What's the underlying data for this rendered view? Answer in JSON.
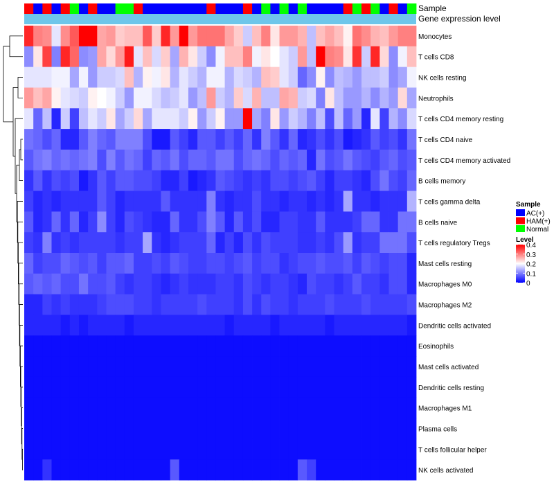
{
  "chart_data": {
    "type": "heatmap",
    "title": "",
    "annotation_labels": [
      "Sample",
      "Gene expression level"
    ],
    "legend": {
      "sample_title": "Sample",
      "sample_entries": [
        {
          "code": "A",
          "label": "AC(+)",
          "color": "#0000ff"
        },
        {
          "code": "H",
          "label": "HAM(+)",
          "color": "#ff0000"
        },
        {
          "code": "N",
          "label": "Normal",
          "color": "#00ff00"
        }
      ],
      "level_title": "Level",
      "level_ticks": [
        "0.4",
        "0.3",
        "0.2",
        "0.1",
        "0"
      ],
      "level_tick_values": [
        0.4,
        0.3,
        0.2,
        0.1,
        0
      ],
      "scale": {
        "min": 0,
        "mid": 0.2,
        "max": 0.4,
        "low_color": "#0000ff",
        "mid_color": "#ffffff",
        "high_color": "#ff0000"
      }
    },
    "gene_expression_bar_color": "#6ec6ea",
    "sample_groups": "HAHAHNAHAANNHAAAAAAAHAAAHANANANAAAAHNHNAHAN",
    "row_labels": [
      "Monocytes",
      "T cells CD8",
      "NK cells resting",
      "Neutrophils",
      "T cells CD4 memory resting",
      "T cells CD4 naive",
      "T cells CD4 memory activated",
      "B cells memory",
      "T cells gamma delta",
      "B cells naive",
      "T cells regulatory  Tregs",
      "Mast cells resting",
      "Macrophages M0",
      "Macrophages M2",
      "Dendritic cells activated",
      "Eosinophils",
      "Mast cells activated",
      "Dendritic cells resting",
      "Macrophages M1",
      "Plasma cells",
      "T cells follicular helper",
      "NK cells activated"
    ],
    "values": [
      [
        0.37,
        0.3,
        0.29,
        0.18,
        0.29,
        0.33,
        0.4,
        0.4,
        0.27,
        0.28,
        0.24,
        0.25,
        0.25,
        0.33,
        0.24,
        0.37,
        0.28,
        0.4,
        0.28,
        0.31,
        0.31,
        0.31,
        0.27,
        0.24,
        0.16,
        0.25,
        0.3,
        0.22,
        0.28,
        0.28,
        0.26,
        0.15,
        0.25,
        0.27,
        0.25,
        0.21,
        0.31,
        0.29,
        0.26,
        0.25,
        0.28,
        0.3,
        0.3
      ],
      [
        0.11,
        0.22,
        0.35,
        0.1,
        0.37,
        0.32,
        0.11,
        0.12,
        0.27,
        0.23,
        0.28,
        0.38,
        0.18,
        0.25,
        0.17,
        0.24,
        0.13,
        0.26,
        0.22,
        0.16,
        0.11,
        0.19,
        0.25,
        0.25,
        0.3,
        0.19,
        0.22,
        0.2,
        0.18,
        0.16,
        0.28,
        0.15,
        0.4,
        0.3,
        0.29,
        0.22,
        0.36,
        0.16,
        0.37,
        0.23,
        0.11,
        0.19,
        0.25
      ],
      [
        0.18,
        0.18,
        0.18,
        0.19,
        0.19,
        0.13,
        0.19,
        0.12,
        0.16,
        0.16,
        0.17,
        0.25,
        0.14,
        0.21,
        0.19,
        0.22,
        0.14,
        0.18,
        0.16,
        0.14,
        0.19,
        0.19,
        0.14,
        0.17,
        0.16,
        0.14,
        0.25,
        0.24,
        0.18,
        0.16,
        0.08,
        0.11,
        0.21,
        0.11,
        0.15,
        0.14,
        0.12,
        0.15,
        0.15,
        0.16,
        0.11,
        0.13,
        0.19
      ],
      [
        0.28,
        0.25,
        0.27,
        0.21,
        0.18,
        0.17,
        0.16,
        0.21,
        0.2,
        0.19,
        0.16,
        0.12,
        0.19,
        0.19,
        0.17,
        0.15,
        0.16,
        0.18,
        0.12,
        0.15,
        0.28,
        0.16,
        0.14,
        0.24,
        0.17,
        0.26,
        0.15,
        0.15,
        0.27,
        0.26,
        0.16,
        0.17,
        0.1,
        0.22,
        0.15,
        0.12,
        0.12,
        0.14,
        0.11,
        0.14,
        0.12,
        0.23,
        0.13
      ],
      [
        0.18,
        0.08,
        0.15,
        0.03,
        0.16,
        0.05,
        0.15,
        0.18,
        0.16,
        0.22,
        0.13,
        0.16,
        0.23,
        0.13,
        0.18,
        0.18,
        0.18,
        0.16,
        0.21,
        0.12,
        0.16,
        0.21,
        0.12,
        0.12,
        0.4,
        0.13,
        0.1,
        0.22,
        0.12,
        0.16,
        0.14,
        0.1,
        0.15,
        0.06,
        0.15,
        0.08,
        0.12,
        0.03,
        0.18,
        0.05,
        0.14,
        0.11,
        0.17
      ],
      [
        0.09,
        0.08,
        0.06,
        0.08,
        0.03,
        0.03,
        0.07,
        0.1,
        0.08,
        0.07,
        0.1,
        0.1,
        0.1,
        0.06,
        0.02,
        0.02,
        0.07,
        0.05,
        0.03,
        0.07,
        0.07,
        0.05,
        0.07,
        0.05,
        0.08,
        0.04,
        0.1,
        0.07,
        0.04,
        0.08,
        0.03,
        0.04,
        0.06,
        0.04,
        0.06,
        0.02,
        0.03,
        0.04,
        0.07,
        0.05,
        0.06,
        0.04,
        0.09
      ],
      [
        0.07,
        0.09,
        0.1,
        0.08,
        0.09,
        0.08,
        0.09,
        0.1,
        0.06,
        0.1,
        0.07,
        0.09,
        0.08,
        0.05,
        0.08,
        0.07,
        0.09,
        0.06,
        0.08,
        0.08,
        0.07,
        0.09,
        0.09,
        0.06,
        0.08,
        0.09,
        0.08,
        0.06,
        0.08,
        0.07,
        0.08,
        0.03,
        0.09,
        0.06,
        0.07,
        0.09,
        0.07,
        0.06,
        0.05,
        0.07,
        0.08,
        0.06,
        0.07
      ],
      [
        0.04,
        0.07,
        0.04,
        0.06,
        0.05,
        0.06,
        0.02,
        0.04,
        0.07,
        0.05,
        0.07,
        0.07,
        0.06,
        0.06,
        0.05,
        0.03,
        0.03,
        0.05,
        0.02,
        0.03,
        0.04,
        0.07,
        0.06,
        0.05,
        0.04,
        0.05,
        0.04,
        0.06,
        0.06,
        0.05,
        0.06,
        0.07,
        0.05,
        0.03,
        0.05,
        0.05,
        0.04,
        0.03,
        0.06,
        0.09,
        0.06,
        0.05,
        0.08
      ],
      [
        0.05,
        0.03,
        0.04,
        0.03,
        0.04,
        0.04,
        0.04,
        0.04,
        0.07,
        0.05,
        0.03,
        0.04,
        0.04,
        0.04,
        0.04,
        0.07,
        0.04,
        0.04,
        0.04,
        0.04,
        0.1,
        0.04,
        0.03,
        0.04,
        0.04,
        0.06,
        0.04,
        0.04,
        0.03,
        0.04,
        0.04,
        0.03,
        0.04,
        0.03,
        0.04,
        0.13,
        0.04,
        0.04,
        0.03,
        0.04,
        0.04,
        0.04,
        0.14
      ],
      [
        0.07,
        0.03,
        0.04,
        0.08,
        0.04,
        0.08,
        0.03,
        0.05,
        0.11,
        0.05,
        0.03,
        0.06,
        0.05,
        0.04,
        0.03,
        0.03,
        0.08,
        0.04,
        0.04,
        0.06,
        0.1,
        0.07,
        0.03,
        0.07,
        0.04,
        0.06,
        0.03,
        0.03,
        0.05,
        0.05,
        0.04,
        0.04,
        0.07,
        0.04,
        0.04,
        0.04,
        0.05,
        0.08,
        0.08,
        0.04,
        0.04,
        0.09,
        0.09
      ],
      [
        0.05,
        0.04,
        0.1,
        0.04,
        0.05,
        0.04,
        0.05,
        0.05,
        0.05,
        0.05,
        0.04,
        0.05,
        0.05,
        0.13,
        0.04,
        0.03,
        0.04,
        0.05,
        0.05,
        0.05,
        0.08,
        0.03,
        0.05,
        0.03,
        0.06,
        0.04,
        0.06,
        0.05,
        0.05,
        0.05,
        0.04,
        0.04,
        0.05,
        0.04,
        0.06,
        0.12,
        0.04,
        0.05,
        0.05,
        0.09,
        0.09,
        0.09,
        0.06
      ],
      [
        0.08,
        0.05,
        0.06,
        0.06,
        0.08,
        0.07,
        0.06,
        0.07,
        0.05,
        0.07,
        0.07,
        0.08,
        0.05,
        0.05,
        0.06,
        0.05,
        0.07,
        0.06,
        0.05,
        0.05,
        0.06,
        0.06,
        0.05,
        0.06,
        0.07,
        0.05,
        0.06,
        0.06,
        0.04,
        0.05,
        0.06,
        0.06,
        0.07,
        0.06,
        0.06,
        0.07,
        0.05,
        0.07,
        0.06,
        0.05,
        0.06,
        0.06,
        0.03
      ],
      [
        0.07,
        0.08,
        0.07,
        0.08,
        0.06,
        0.06,
        0.09,
        0.06,
        0.06,
        0.07,
        0.05,
        0.04,
        0.05,
        0.05,
        0.04,
        0.03,
        0.04,
        0.05,
        0.04,
        0.04,
        0.04,
        0.05,
        0.05,
        0.04,
        0.06,
        0.05,
        0.04,
        0.05,
        0.05,
        0.04,
        0.03,
        0.06,
        0.05,
        0.05,
        0.04,
        0.05,
        0.07,
        0.05,
        0.05,
        0.04,
        0.06,
        0.06,
        0.03
      ],
      [
        0.03,
        0.03,
        0.05,
        0.04,
        0.05,
        0.04,
        0.04,
        0.04,
        0.05,
        0.06,
        0.06,
        0.06,
        0.05,
        0.05,
        0.04,
        0.05,
        0.05,
        0.05,
        0.05,
        0.06,
        0.05,
        0.05,
        0.05,
        0.04,
        0.06,
        0.04,
        0.06,
        0.05,
        0.05,
        0.04,
        0.05,
        0.05,
        0.05,
        0.06,
        0.05,
        0.05,
        0.05,
        0.06,
        0.05,
        0.05,
        0.05,
        0.05,
        0.06
      ],
      [
        0.03,
        0.03,
        0.03,
        0.03,
        0.02,
        0.03,
        0.02,
        0.03,
        0.03,
        0.03,
        0.03,
        0.02,
        0.03,
        0.03,
        0.03,
        0.03,
        0.03,
        0.03,
        0.03,
        0.03,
        0.03,
        0.03,
        0.02,
        0.03,
        0.03,
        0.03,
        0.03,
        0.02,
        0.03,
        0.03,
        0.03,
        0.03,
        0.03,
        0.02,
        0.03,
        0.03,
        0.03,
        0.03,
        0.03,
        0.03,
        0.03,
        0.03,
        0.02
      ],
      [
        0.01,
        0.01,
        0.01,
        0.01,
        0.01,
        0.01,
        0.01,
        0.01,
        0.01,
        0.01,
        0.01,
        0.01,
        0.01,
        0.01,
        0.01,
        0.01,
        0.01,
        0.01,
        0.01,
        0.01,
        0.01,
        0.01,
        0.01,
        0.01,
        0.01,
        0.01,
        0.01,
        0.01,
        0.01,
        0.01,
        0.01,
        0.01,
        0.01,
        0.01,
        0.01,
        0.01,
        0.01,
        0.01,
        0.01,
        0.01,
        0.01,
        0.01,
        0.01
      ],
      [
        0.01,
        0.01,
        0.01,
        0.01,
        0.01,
        0.01,
        0.01,
        0.01,
        0.01,
        0.01,
        0.01,
        0.01,
        0.01,
        0.01,
        0.01,
        0.01,
        0.01,
        0.01,
        0.01,
        0.01,
        0.01,
        0.01,
        0.01,
        0.01,
        0.01,
        0.01,
        0.01,
        0.01,
        0.01,
        0.01,
        0.01,
        0.01,
        0.01,
        0.01,
        0.01,
        0.01,
        0.01,
        0.01,
        0.01,
        0.01,
        0.01,
        0.01,
        0.01
      ],
      [
        0.01,
        0.01,
        0.01,
        0.01,
        0.01,
        0.01,
        0.01,
        0.01,
        0.01,
        0.01,
        0.01,
        0.01,
        0.01,
        0.01,
        0.01,
        0.01,
        0.01,
        0.01,
        0.01,
        0.01,
        0.01,
        0.01,
        0.01,
        0.01,
        0.01,
        0.01,
        0.01,
        0.01,
        0.01,
        0.01,
        0.01,
        0.01,
        0.01,
        0.01,
        0.01,
        0.01,
        0.01,
        0.01,
        0.01,
        0.01,
        0.01,
        0.01,
        0.01
      ],
      [
        0.01,
        0.01,
        0.01,
        0.01,
        0.01,
        0.01,
        0.01,
        0.01,
        0.01,
        0.01,
        0.01,
        0.01,
        0.01,
        0.01,
        0.01,
        0.01,
        0.01,
        0.01,
        0.01,
        0.01,
        0.01,
        0.01,
        0.01,
        0.01,
        0.01,
        0.01,
        0.01,
        0.01,
        0.01,
        0.01,
        0.01,
        0.01,
        0.01,
        0.01,
        0.01,
        0.01,
        0.01,
        0.01,
        0.01,
        0.01,
        0.01,
        0.01,
        0.01
      ],
      [
        0.01,
        0.01,
        0.01,
        0.01,
        0.01,
        0.01,
        0.01,
        0.01,
        0.01,
        0.01,
        0.01,
        0.01,
        0.01,
        0.01,
        0.01,
        0.01,
        0.01,
        0.01,
        0.01,
        0.01,
        0.01,
        0.01,
        0.01,
        0.01,
        0.01,
        0.01,
        0.01,
        0.01,
        0.01,
        0.01,
        0.01,
        0.01,
        0.01,
        0.01,
        0.01,
        0.01,
        0.01,
        0.01,
        0.01,
        0.01,
        0.01,
        0.01,
        0.01
      ],
      [
        0.01,
        0.01,
        0.01,
        0.01,
        0.01,
        0.01,
        0.01,
        0.01,
        0.01,
        0.01,
        0.01,
        0.01,
        0.01,
        0.01,
        0.01,
        0.01,
        0.01,
        0.01,
        0.01,
        0.01,
        0.01,
        0.01,
        0.01,
        0.01,
        0.01,
        0.01,
        0.01,
        0.01,
        0.01,
        0.01,
        0.01,
        0.01,
        0.01,
        0.01,
        0.01,
        0.01,
        0.01,
        0.01,
        0.01,
        0.01,
        0.01,
        0.01,
        0.01
      ],
      [
        0.01,
        0.01,
        0.04,
        0.01,
        0.01,
        0.01,
        0.01,
        0.01,
        0.01,
        0.01,
        0.01,
        0.01,
        0.01,
        0.01,
        0.01,
        0.01,
        0.07,
        0.01,
        0.01,
        0.01,
        0.01,
        0.01,
        0.01,
        0.01,
        0.01,
        0.01,
        0.01,
        0.01,
        0.01,
        0.01,
        0.07,
        0.05,
        0.01,
        0.01,
        0.01,
        0.01,
        0.01,
        0.01,
        0.01,
        0.01,
        0.01,
        0.01,
        0.01
      ]
    ]
  }
}
